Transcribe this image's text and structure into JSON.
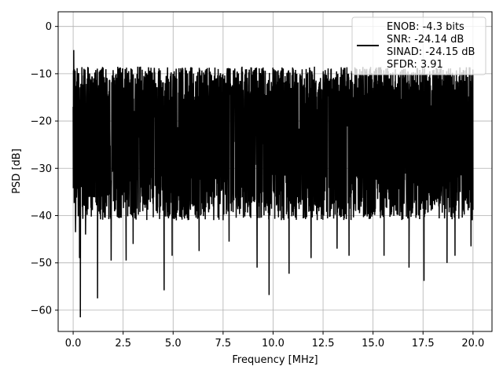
{
  "chart_data": {
    "type": "line",
    "xlabel": "Frequency [MHz]",
    "ylabel": "PSD [dB]",
    "xlim": [
      -0.75,
      20.95
    ],
    "ylim": [
      -64.5,
      3.1
    ],
    "xticks": [
      0.0,
      2.5,
      5.0,
      7.5,
      10.0,
      12.5,
      15.0,
      17.5,
      20.0
    ],
    "xtick_labels": [
      "0.0",
      "2.5",
      "5.0",
      "7.5",
      "10.0",
      "12.5",
      "15.0",
      "17.5",
      "20.0"
    ],
    "yticks": [
      0,
      -10,
      -20,
      -30,
      -40,
      -50,
      -60
    ],
    "ytick_labels": [
      "0",
      "−10",
      "−20",
      "−30",
      "−40",
      "−50",
      "−60"
    ],
    "grid": true,
    "legend_position": "top-right",
    "series": [
      {
        "name_lines": [
          "ENOB: -4.3 bits",
          "SNR: -24.14 dB",
          "SINAD: -24.15 dB",
          "SFDR: 3.91"
        ],
        "color": "#000000",
        "x_range": [
          0.0,
          20.0
        ],
        "noise_band": {
          "upper_typical": -12,
          "lower_typical": -36,
          "floor_mean": -22
        },
        "peaks": [
          {
            "x": 0.0,
            "y": 0.0
          },
          {
            "x": 0.03,
            "y": -5.0
          },
          {
            "x": 0.08,
            "y": -12.0
          }
        ],
        "dips": [
          {
            "x": 0.12,
            "y": -43.5
          },
          {
            "x": 0.36,
            "y": -61.5
          },
          {
            "x": 0.32,
            "y": -49.0
          },
          {
            "x": 0.62,
            "y": -44.0
          },
          {
            "x": 1.22,
            "y": -57.5
          },
          {
            "x": 1.9,
            "y": -49.5
          },
          {
            "x": 2.65,
            "y": -49.5
          },
          {
            "x": 3.0,
            "y": -46.0
          },
          {
            "x": 4.55,
            "y": -55.8
          },
          {
            "x": 4.95,
            "y": -48.5
          },
          {
            "x": 6.3,
            "y": -47.5
          },
          {
            "x": 7.8,
            "y": -45.5
          },
          {
            "x": 9.8,
            "y": -56.8
          },
          {
            "x": 9.2,
            "y": -51.0
          },
          {
            "x": 10.8,
            "y": -52.3
          },
          {
            "x": 11.9,
            "y": -49.0
          },
          {
            "x": 13.2,
            "y": -47.0
          },
          {
            "x": 13.8,
            "y": -48.5
          },
          {
            "x": 15.55,
            "y": -48.5
          },
          {
            "x": 16.8,
            "y": -51.0
          },
          {
            "x": 17.55,
            "y": -53.8
          },
          {
            "x": 18.7,
            "y": -50.0
          },
          {
            "x": 19.1,
            "y": -48.5
          },
          {
            "x": 19.9,
            "y": -46.5
          }
        ]
      }
    ]
  }
}
